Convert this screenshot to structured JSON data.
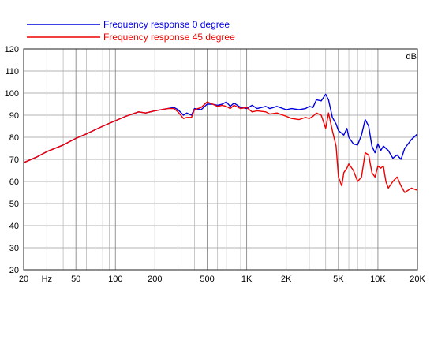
{
  "chart_data": {
    "type": "line",
    "title": "",
    "xlabel": "",
    "ylabel": "dB",
    "xscale": "log",
    "xlim": [
      20,
      20000
    ],
    "ylim": [
      20,
      120
    ],
    "grid": true,
    "legend_position": "top",
    "x_ticks": [
      {
        "value": 20,
        "label": "20"
      },
      {
        "value": 30,
        "label": "Hz"
      },
      {
        "value": 50,
        "label": "50"
      },
      {
        "value": 100,
        "label": "100"
      },
      {
        "value": 200,
        "label": "200"
      },
      {
        "value": 500,
        "label": "500"
      },
      {
        "value": 1000,
        "label": "1K"
      },
      {
        "value": 2000,
        "label": "2K"
      },
      {
        "value": 5000,
        "label": "5K"
      },
      {
        "value": 10000,
        "label": "10K"
      },
      {
        "value": 20000,
        "label": "20K"
      }
    ],
    "y_ticks": [
      20,
      30,
      40,
      50,
      60,
      70,
      80,
      90,
      100,
      110,
      120
    ],
    "series": [
      {
        "name": "Frequency response 0 degree",
        "color": "#0000dd",
        "points": [
          [
            20,
            68.5
          ],
          [
            25,
            71
          ],
          [
            30,
            73.5
          ],
          [
            40,
            76.5
          ],
          [
            50,
            79.5
          ],
          [
            60,
            81.5
          ],
          [
            80,
            85
          ],
          [
            100,
            87.5
          ],
          [
            120,
            89.5
          ],
          [
            150,
            91.5
          ],
          [
            170,
            91
          ],
          [
            200,
            92
          ],
          [
            250,
            93
          ],
          [
            280,
            93.5
          ],
          [
            300,
            92.5
          ],
          [
            330,
            90
          ],
          [
            350,
            91
          ],
          [
            380,
            90
          ],
          [
            400,
            93
          ],
          [
            450,
            92.5
          ],
          [
            500,
            95
          ],
          [
            550,
            95
          ],
          [
            600,
            94.5
          ],
          [
            650,
            95
          ],
          [
            700,
            96
          ],
          [
            750,
            94
          ],
          [
            800,
            95.5
          ],
          [
            900,
            93.5
          ],
          [
            1000,
            93
          ],
          [
            1100,
            94.5
          ],
          [
            1200,
            93
          ],
          [
            1400,
            94
          ],
          [
            1500,
            93
          ],
          [
            1700,
            94
          ],
          [
            2000,
            92.5
          ],
          [
            2200,
            93
          ],
          [
            2500,
            92.5
          ],
          [
            2800,
            93
          ],
          [
            3000,
            94
          ],
          [
            3200,
            93.5
          ],
          [
            3400,
            97
          ],
          [
            3700,
            96.5
          ],
          [
            4000,
            99.5
          ],
          [
            4200,
            97
          ],
          [
            4500,
            89
          ],
          [
            4800,
            86
          ],
          [
            5000,
            83
          ],
          [
            5500,
            81
          ],
          [
            5800,
            84
          ],
          [
            6000,
            80
          ],
          [
            6500,
            77
          ],
          [
            7000,
            76.5
          ],
          [
            7500,
            81
          ],
          [
            8000,
            88
          ],
          [
            8500,
            85
          ],
          [
            9000,
            76
          ],
          [
            9500,
            73
          ],
          [
            10000,
            77
          ],
          [
            10500,
            74
          ],
          [
            11000,
            76
          ],
          [
            12000,
            74
          ],
          [
            13000,
            70.5
          ],
          [
            14000,
            72
          ],
          [
            15000,
            70
          ],
          [
            16000,
            75
          ],
          [
            18000,
            79
          ],
          [
            20000,
            81.5
          ]
        ]
      },
      {
        "name": "Frequency response 45 degree",
        "color": "#ee0000",
        "points": [
          [
            20,
            68.5
          ],
          [
            25,
            71
          ],
          [
            30,
            73.5
          ],
          [
            40,
            76.5
          ],
          [
            50,
            79.5
          ],
          [
            60,
            81.5
          ],
          [
            80,
            85
          ],
          [
            100,
            87.5
          ],
          [
            120,
            89.5
          ],
          [
            150,
            91.5
          ],
          [
            170,
            91
          ],
          [
            200,
            92
          ],
          [
            250,
            93
          ],
          [
            280,
            93
          ],
          [
            300,
            91.5
          ],
          [
            330,
            88.5
          ],
          [
            350,
            89
          ],
          [
            380,
            89
          ],
          [
            400,
            92.5
          ],
          [
            450,
            93.5
          ],
          [
            500,
            96
          ],
          [
            550,
            95
          ],
          [
            600,
            94
          ],
          [
            650,
            94.5
          ],
          [
            700,
            94
          ],
          [
            750,
            93
          ],
          [
            800,
            94.5
          ],
          [
            900,
            93
          ],
          [
            1000,
            93.5
          ],
          [
            1100,
            91.5
          ],
          [
            1200,
            92
          ],
          [
            1400,
            91.5
          ],
          [
            1500,
            90.5
          ],
          [
            1700,
            91
          ],
          [
            2000,
            89.5
          ],
          [
            2200,
            88.5
          ],
          [
            2500,
            88
          ],
          [
            2800,
            89
          ],
          [
            3000,
            88.5
          ],
          [
            3200,
            89.5
          ],
          [
            3400,
            91
          ],
          [
            3700,
            90
          ],
          [
            4000,
            84
          ],
          [
            4200,
            91
          ],
          [
            4500,
            83
          ],
          [
            4800,
            76
          ],
          [
            5000,
            62
          ],
          [
            5300,
            58
          ],
          [
            5500,
            64
          ],
          [
            5800,
            66
          ],
          [
            6000,
            68
          ],
          [
            6500,
            65
          ],
          [
            7000,
            60
          ],
          [
            7500,
            62
          ],
          [
            8000,
            73
          ],
          [
            8500,
            72
          ],
          [
            9000,
            64
          ],
          [
            9500,
            62
          ],
          [
            10000,
            67
          ],
          [
            10500,
            66
          ],
          [
            11000,
            67
          ],
          [
            11500,
            60
          ],
          [
            12000,
            57
          ],
          [
            13000,
            60
          ],
          [
            14000,
            62
          ],
          [
            15000,
            58
          ],
          [
            16000,
            55
          ],
          [
            18000,
            57
          ],
          [
            20000,
            56
          ]
        ]
      }
    ]
  }
}
